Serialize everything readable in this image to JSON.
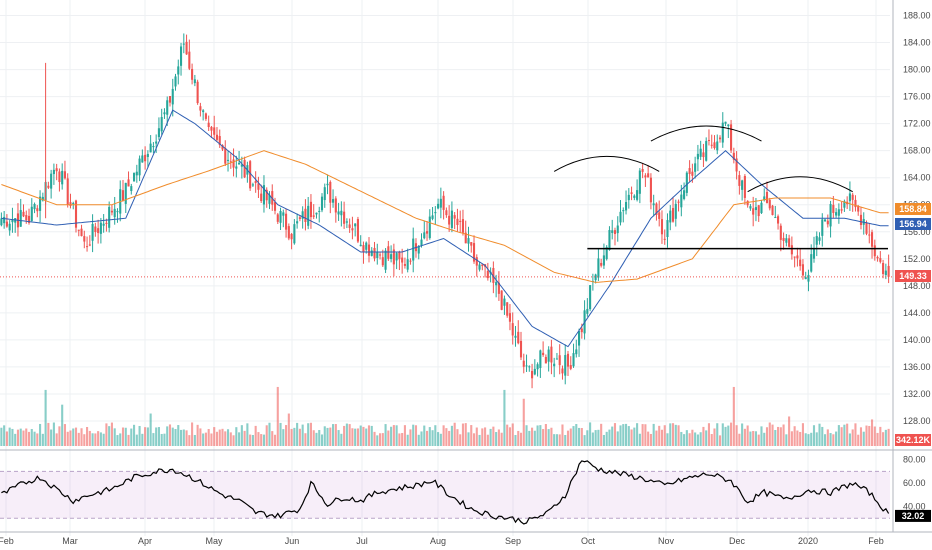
{
  "chart_data": [
    {
      "type": "candlestick",
      "panel": "price",
      "ylim": [
        124,
        190
      ],
      "y_ticks": [
        "188.00",
        "184.00",
        "180.00",
        "176.00",
        "172.00",
        "168.00",
        "164.00",
        "160.00",
        "156.00",
        "152.00",
        "148.00",
        "144.00",
        "140.00",
        "136.00",
        "132.00",
        "128.00"
      ],
      "x_ticks": [
        "Feb",
        "Mar",
        "Apr",
        "May",
        "Jun",
        "Jul",
        "Aug",
        "Sep",
        "Oct",
        "Nov",
        "Dec",
        "2020",
        "Feb"
      ],
      "close_anchors": [
        [
          0,
          158
        ],
        [
          10,
          158
        ],
        [
          20,
          166
        ],
        [
          30,
          154
        ],
        [
          45,
          162
        ],
        [
          60,
          174
        ],
        [
          66,
          184
        ],
        [
          75,
          170
        ],
        [
          90,
          164
        ],
        [
          105,
          156
        ],
        [
          118,
          162
        ],
        [
          132,
          154
        ],
        [
          145,
          151
        ],
        [
          158,
          160
        ],
        [
          165,
          157
        ],
        [
          172,
          151
        ],
        [
          180,
          147
        ],
        [
          190,
          135
        ],
        [
          198,
          138
        ],
        [
          205,
          136
        ],
        [
          210,
          142
        ],
        [
          215,
          150
        ],
        [
          225,
          160
        ],
        [
          232,
          165
        ],
        [
          240,
          156
        ],
        [
          248,
          164
        ],
        [
          255,
          168
        ],
        [
          262,
          172
        ],
        [
          270,
          159
        ],
        [
          278,
          160
        ],
        [
          285,
          153
        ],
        [
          292,
          150
        ],
        [
          298,
          158
        ],
        [
          305,
          161
        ],
        [
          312,
          158
        ],
        [
          317,
          152
        ],
        [
          321,
          149.3
        ]
      ],
      "series": [
        {
          "name": "",
          "kind": "moving-average",
          "color": "#2f5fb3",
          "anchors": [
            [
              0,
              158
            ],
            [
              20,
              157
            ],
            [
              45,
              158
            ],
            [
              62,
              174
            ],
            [
              70,
              172
            ],
            [
              85,
              167
            ],
            [
              100,
              160
            ],
            [
              115,
              157
            ],
            [
              130,
              153
            ],
            [
              145,
              153
            ],
            [
              160,
              155
            ],
            [
              175,
              151
            ],
            [
              192,
              142
            ],
            [
              205,
              139
            ],
            [
              220,
              148
            ],
            [
              235,
              158
            ],
            [
              248,
              163
            ],
            [
              262,
              168
            ],
            [
              275,
              163
            ],
            [
              290,
              158
            ],
            [
              305,
              158
            ],
            [
              318,
              156.9
            ]
          ]
        },
        {
          "name": "",
          "kind": "moving-average",
          "color": "#f08c2b",
          "anchors": [
            [
              0,
              163
            ],
            [
              20,
              160
            ],
            [
              40,
              160
            ],
            [
              60,
              163
            ],
            [
              75,
              165
            ],
            [
              95,
              168
            ],
            [
              110,
              166
            ],
            [
              130,
              162
            ],
            [
              150,
              158
            ],
            [
              165,
              156
            ],
            [
              182,
              154
            ],
            [
              200,
              150
            ],
            [
              215,
              148.5
            ],
            [
              230,
              149
            ],
            [
              250,
              152
            ],
            [
              265,
              160
            ],
            [
              280,
              161
            ],
            [
              300,
              161
            ],
            [
              318,
              158.8
            ]
          ]
        }
      ],
      "annotations": {
        "neckline": {
          "y": 153.5,
          "x": [
            212,
            340
          ]
        },
        "head_shoulder_arcs": [
          [
            200,
            238,
            167
          ],
          [
            235,
            275,
            171.5
          ],
          [
            270,
            308,
            164
          ]
        ]
      },
      "price_labels": [
        {
          "value": "158.84",
          "color": "#f08c2b"
        },
        {
          "value": "156.94",
          "color": "#2f5fb3"
        },
        {
          "value": "149.33",
          "color": "#ef5350"
        }
      ],
      "last_price_line": 149.33
    },
    {
      "type": "bar",
      "panel": "volume",
      "last_value": "342.12K",
      "peaks": [
        [
          16,
          0.95
        ],
        [
          22,
          0.7
        ],
        [
          54,
          0.55
        ],
        [
          100,
          1.0
        ],
        [
          104,
          0.55
        ],
        [
          182,
          0.95
        ],
        [
          189,
          0.8
        ],
        [
          265,
          1.0
        ],
        [
          285,
          0.5
        ],
        [
          315,
          0.45
        ]
      ],
      "ylim": [
        0,
        1.05
      ]
    },
    {
      "type": "line",
      "panel": "rsi",
      "ylim": [
        20,
        84
      ],
      "y_ticks": [
        "80.00",
        "60.00",
        "40.00"
      ],
      "band": [
        30,
        70
      ],
      "last_value": "32.02",
      "color": "#000000",
      "anchors": [
        [
          0,
          50
        ],
        [
          8,
          60
        ],
        [
          14,
          65
        ],
        [
          20,
          55
        ],
        [
          26,
          45
        ],
        [
          32,
          50
        ],
        [
          40,
          55
        ],
        [
          48,
          65
        ],
        [
          56,
          70
        ],
        [
          62,
          72
        ],
        [
          68,
          66
        ],
        [
          74,
          58
        ],
        [
          80,
          50
        ],
        [
          86,
          45
        ],
        [
          92,
          35
        ],
        [
          100,
          32
        ],
        [
          108,
          38
        ],
        [
          112,
          60
        ],
        [
          118,
          42
        ],
        [
          124,
          48
        ],
        [
          130,
          45
        ],
        [
          136,
          52
        ],
        [
          142,
          55
        ],
        [
          150,
          58
        ],
        [
          156,
          62
        ],
        [
          162,
          50
        ],
        [
          170,
          38
        ],
        [
          178,
          32
        ],
        [
          184,
          30
        ],
        [
          190,
          27
        ],
        [
          198,
          35
        ],
        [
          204,
          50
        ],
        [
          210,
          80
        ],
        [
          216,
          72
        ],
        [
          224,
          68
        ],
        [
          232,
          64
        ],
        [
          240,
          58
        ],
        [
          248,
          64
        ],
        [
          256,
          68
        ],
        [
          264,
          62
        ],
        [
          270,
          44
        ],
        [
          276,
          52
        ],
        [
          284,
          46
        ],
        [
          292,
          54
        ],
        [
          300,
          52
        ],
        [
          308,
          60
        ],
        [
          314,
          52
        ],
        [
          320,
          36
        ],
        [
          321,
          32
        ]
      ]
    }
  ]
}
